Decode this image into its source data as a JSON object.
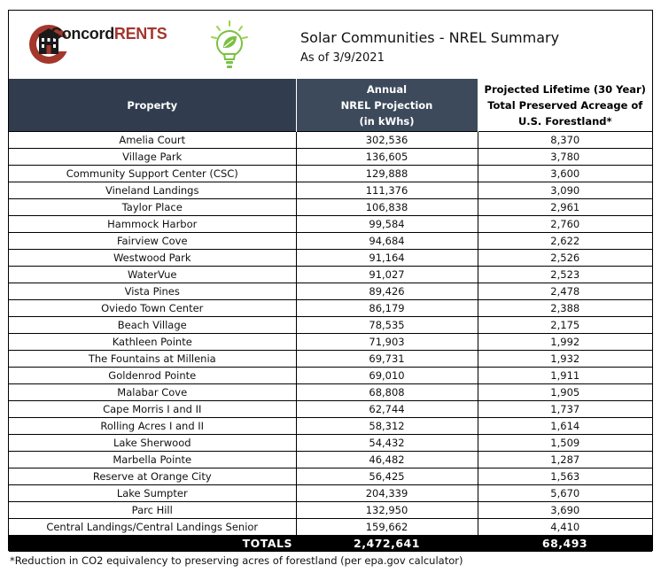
{
  "header": {
    "brand_part1": "Concord",
    "brand_part2": "RENTS",
    "title": "Solar Communities - NREL Summary",
    "subtitle": "As of 3/9/2021",
    "colors": {
      "brand_red": "#a3372c",
      "header_bg": "#313d4e",
      "leaf_green": "#7bc043"
    },
    "icons": [
      "building-icon",
      "lightbulb-leaf-icon"
    ]
  },
  "table": {
    "columns": [
      "Property",
      "Annual NREL Projection (in kWhs)",
      "Projected Lifetime (30 Year) Total Preserved Acreage of U.S. Forestland*"
    ],
    "col2_lines": [
      "Annual",
      "NREL Projection",
      "(in kWhs)"
    ],
    "col3_lines": [
      "Projected Lifetime (30 Year)",
      "Total Preserved Acreage of",
      "U.S. Forestland*"
    ],
    "rows": [
      [
        "Amelia Court",
        "302,536",
        "8,370"
      ],
      [
        "Village Park",
        "136,605",
        "3,780"
      ],
      [
        "Community Support Center (CSC)",
        "129,888",
        "3,600"
      ],
      [
        "Vineland Landings",
        "111,376",
        "3,090"
      ],
      [
        "Taylor Place",
        "106,838",
        "2,961"
      ],
      [
        "Hammock Harbor",
        "99,584",
        "2,760"
      ],
      [
        "Fairview Cove",
        "94,684",
        "2,622"
      ],
      [
        "Westwood Park",
        "91,164",
        "2,526"
      ],
      [
        "WaterVue",
        "91,027",
        "2,523"
      ],
      [
        "Vista Pines",
        "89,426",
        "2,478"
      ],
      [
        "Oviedo Town Center",
        "86,179",
        "2,388"
      ],
      [
        "Beach Village",
        "78,535",
        "2,175"
      ],
      [
        "Kathleen Pointe",
        "71,903",
        "1,992"
      ],
      [
        "The Fountains at Millenia",
        "69,731",
        "1,932"
      ],
      [
        "Goldenrod Pointe",
        "69,010",
        "1,911"
      ],
      [
        "Malabar Cove",
        "68,808",
        "1,905"
      ],
      [
        "Cape Morris I and II",
        "62,744",
        "1,737"
      ],
      [
        "Rolling Acres I and II",
        "58,312",
        "1,614"
      ],
      [
        "Lake Sherwood",
        "54,432",
        "1,509"
      ],
      [
        "Marbella Pointe",
        "46,482",
        "1,287"
      ],
      [
        "Reserve at Orange City",
        "56,425",
        "1,563"
      ],
      [
        "Lake Sumpter",
        "204,339",
        "5,670"
      ],
      [
        "Parc Hill",
        "132,950",
        "3,690"
      ],
      [
        "Central Landings/Central Landings Senior",
        "159,662",
        "4,410"
      ]
    ],
    "totals": {
      "label": "TOTALS",
      "kwh": "2,472,641",
      "acres": "68,493"
    }
  },
  "footnote": "*Reduction in CO2 equivalency to preserving acres of forestland (per epa.gov calculator)"
}
